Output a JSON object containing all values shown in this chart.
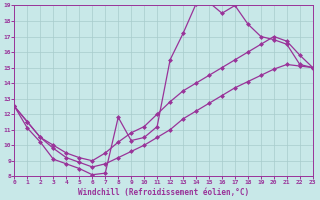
{
  "xlabel": "Windchill (Refroidissement éolien,°C)",
  "bg_color": "#c8e8e8",
  "grid_color": "#a8cccc",
  "line_color": "#993399",
  "xmin": 0,
  "xmax": 23,
  "ymin": 8,
  "ymax": 19,
  "line1_x": [
    0,
    1,
    2,
    3,
    4,
    5,
    6,
    7,
    8,
    9,
    10,
    11,
    12,
    13,
    14,
    15,
    16,
    17,
    18,
    19,
    20,
    21,
    22,
    23
  ],
  "line1_y": [
    12.5,
    11.1,
    10.2,
    9.1,
    8.8,
    8.5,
    8.1,
    8.2,
    11.8,
    10.3,
    10.5,
    11.2,
    15.5,
    17.2,
    19.1,
    19.2,
    18.5,
    19.0,
    17.8,
    17.0,
    16.8,
    16.5,
    15.2,
    15.0
  ],
  "line2_x": [
    0,
    1,
    2,
    3,
    4,
    5,
    6,
    7,
    8,
    9,
    10,
    11,
    12,
    13,
    14,
    15,
    16,
    17,
    18,
    19,
    20,
    21,
    22,
    23
  ],
  "line2_y": [
    12.5,
    11.5,
    10.5,
    10.0,
    9.5,
    9.2,
    9.0,
    9.5,
    10.2,
    10.8,
    11.2,
    12.0,
    12.8,
    13.5,
    14.0,
    14.5,
    15.0,
    15.5,
    16.0,
    16.5,
    17.0,
    16.7,
    15.8,
    15.0
  ],
  "line3_x": [
    0,
    1,
    2,
    3,
    4,
    5,
    6,
    7,
    8,
    9,
    10,
    11,
    12,
    13,
    14,
    15,
    16,
    17,
    18,
    19,
    20,
    21,
    22,
    23
  ],
  "line3_y": [
    12.5,
    11.5,
    10.5,
    9.8,
    9.2,
    8.9,
    8.6,
    8.8,
    9.2,
    9.6,
    10.0,
    10.5,
    11.0,
    11.7,
    12.2,
    12.7,
    13.2,
    13.7,
    14.1,
    14.5,
    14.9,
    15.2,
    15.1,
    15.0
  ],
  "xticks": [
    0,
    1,
    2,
    3,
    4,
    5,
    6,
    7,
    8,
    9,
    10,
    11,
    12,
    13,
    14,
    15,
    16,
    17,
    18,
    19,
    20,
    21,
    22,
    23
  ],
  "yticks": [
    8,
    9,
    10,
    11,
    12,
    13,
    14,
    15,
    16,
    17,
    18,
    19
  ]
}
